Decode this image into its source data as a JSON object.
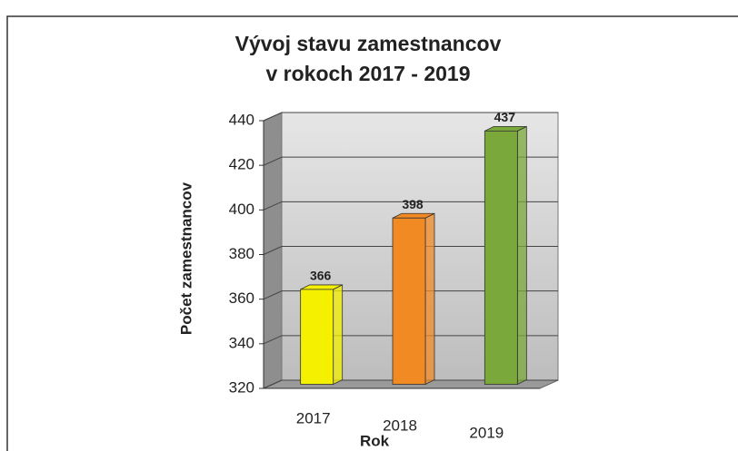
{
  "chart_data": {
    "type": "bar3d",
    "title": [
      "Vývoj stavu zamestnancov",
      "v rokoch 2017 - 2019"
    ],
    "x_label": "Rok",
    "y_label": "Počet zamestnancov",
    "categories": [
      "2017",
      "2018",
      "2019"
    ],
    "values": [
      366,
      398,
      437
    ],
    "value_labels": [
      "366",
      "398",
      "437"
    ],
    "colors": [
      "#f4f000",
      "#f28a24",
      "#7aa83a"
    ],
    "ylim": [
      320,
      440
    ],
    "yticks": [
      320,
      340,
      360,
      380,
      400,
      420,
      440
    ],
    "grid": true
  }
}
